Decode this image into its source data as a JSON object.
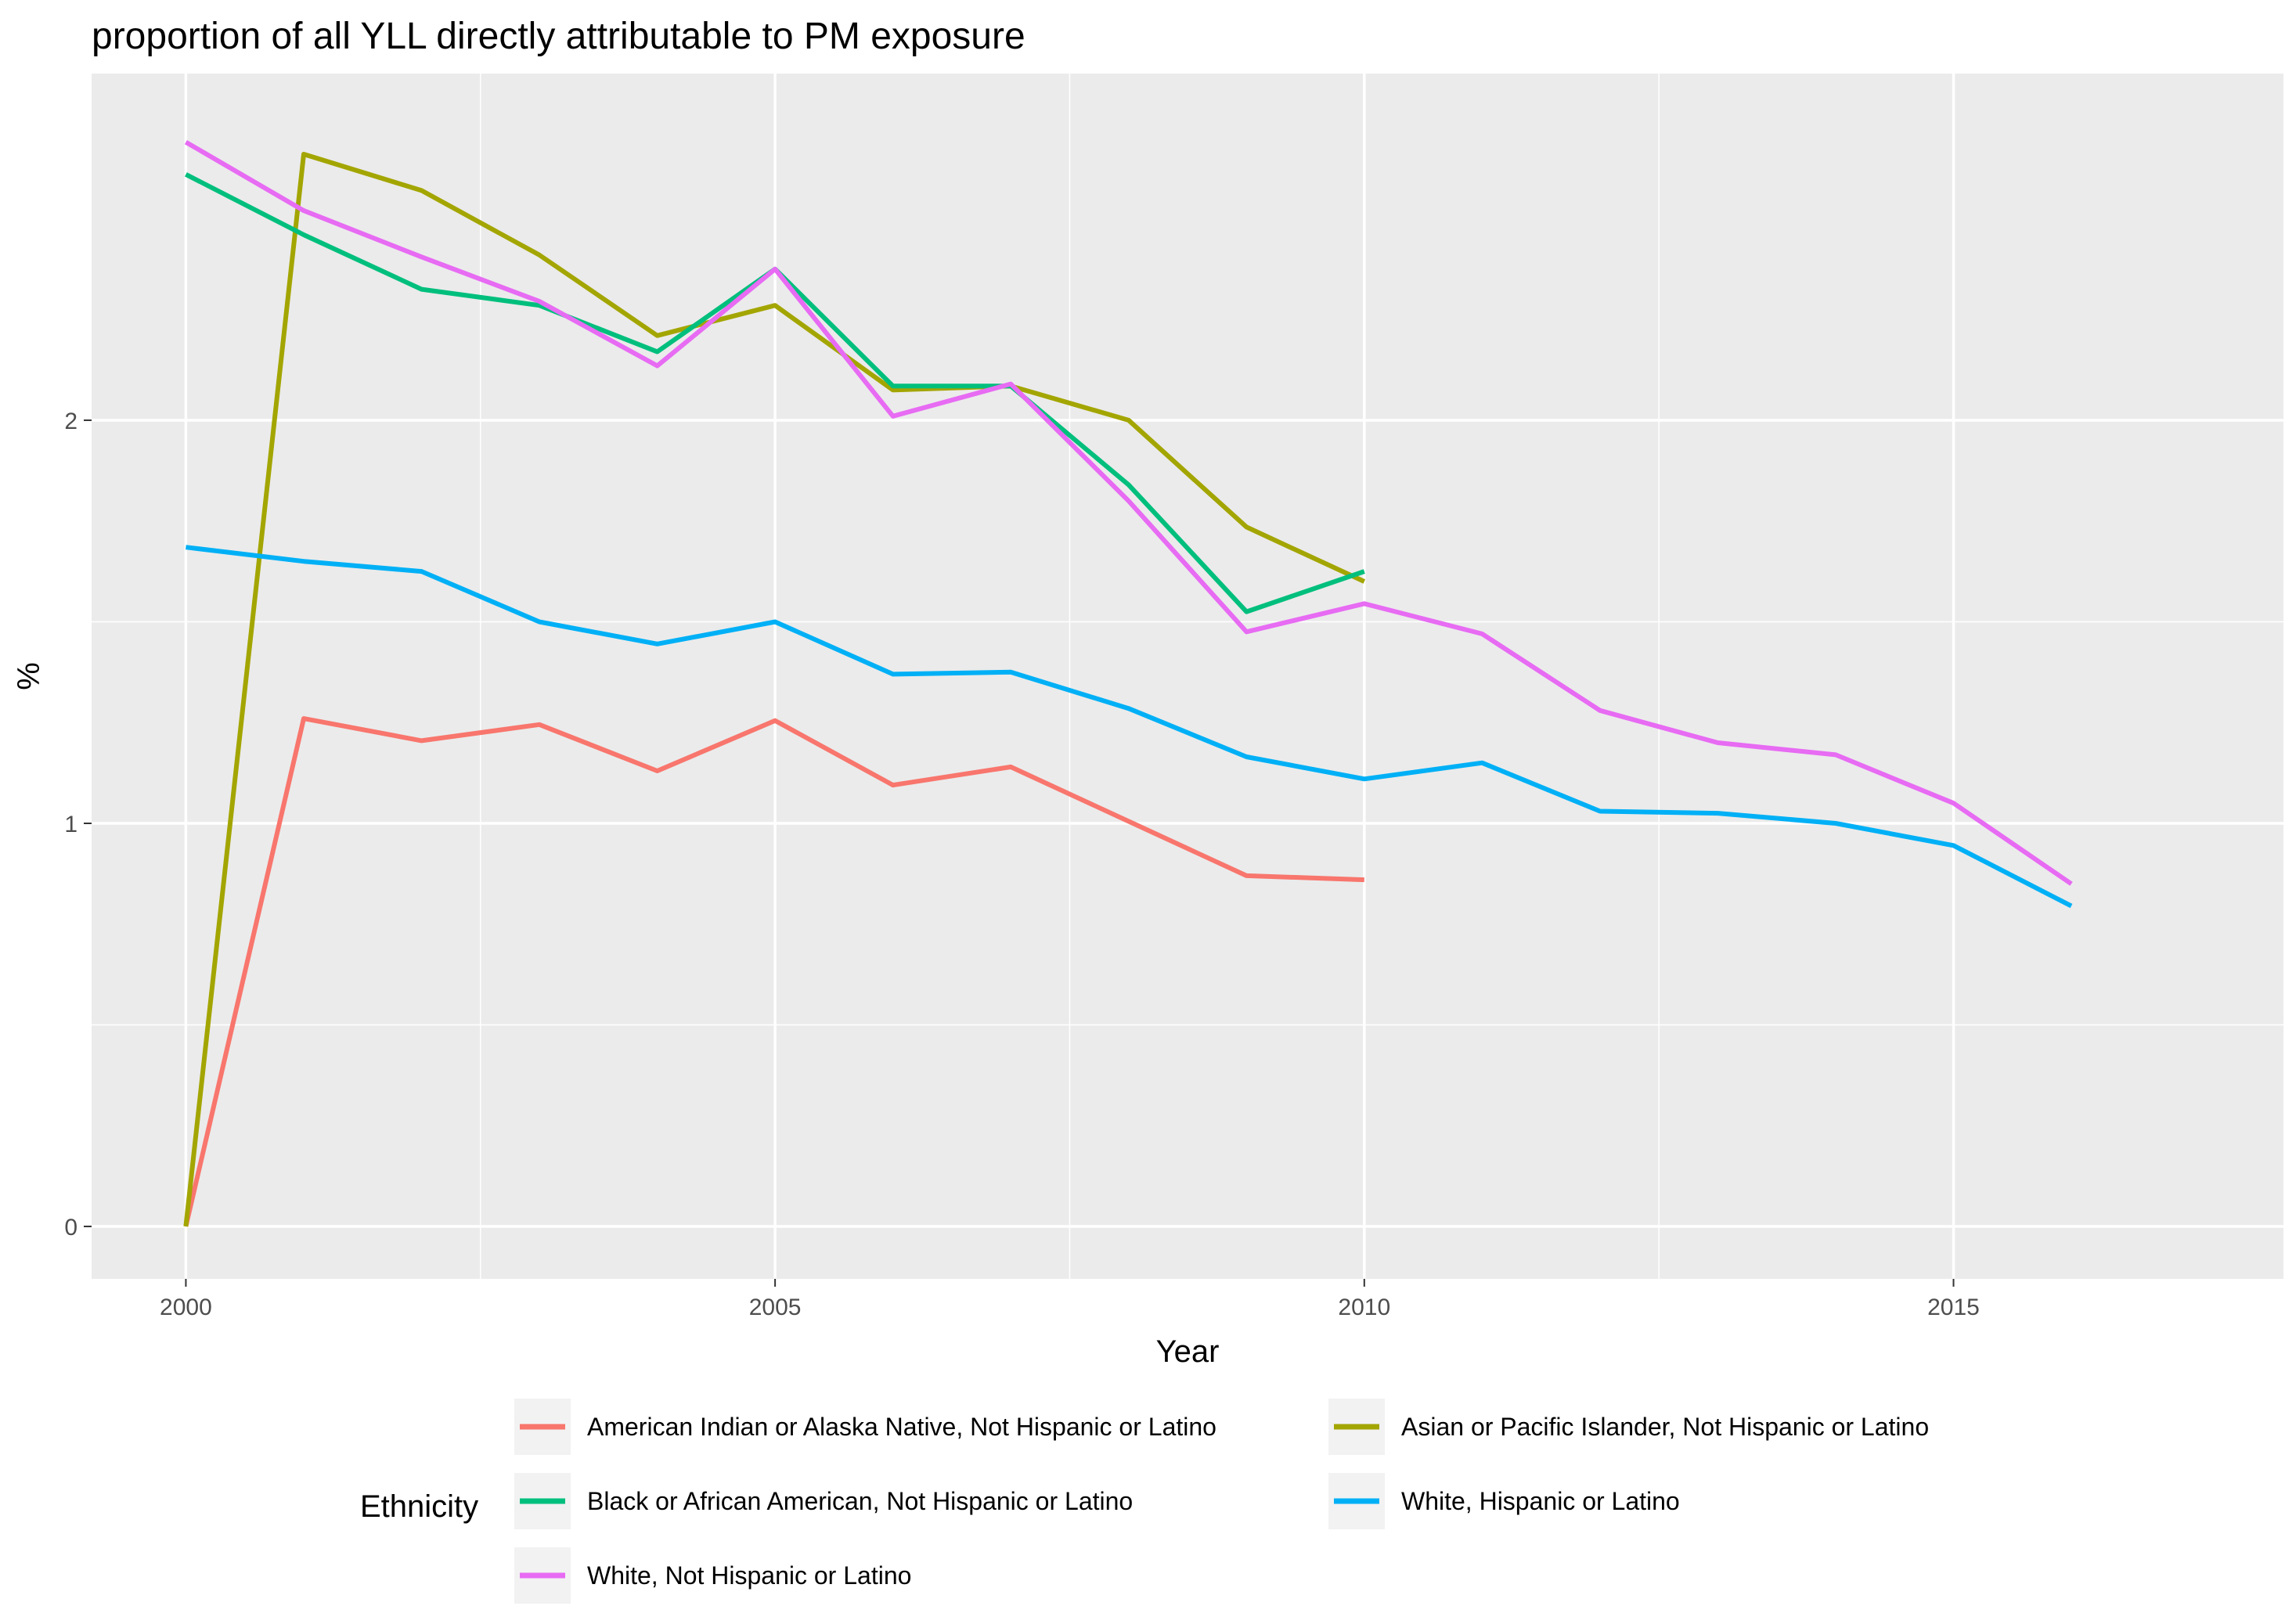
{
  "chart_data": {
    "type": "line",
    "title": "proportion of all YLL directly attributable to PM exposure",
    "xlabel": "Year",
    "ylabel": "%",
    "xlim": [
      1999.2,
      2017.8
    ],
    "ylim": [
      -0.13,
      2.86
    ],
    "x_ticks": [
      2000,
      2005,
      2010,
      2015
    ],
    "y_ticks": [
      0,
      1,
      2
    ],
    "grid": true,
    "legend": {
      "title": "Ethnicity",
      "position": "bottom"
    },
    "series": [
      {
        "name": "American Indian or Alaska Native, Not Hispanic or Latino",
        "color": "#F8766D",
        "x": [
          2000,
          2001,
          2002,
          2003,
          2004,
          2005,
          2006,
          2007,
          2008,
          2009,
          2010
        ],
        "values": [
          0.0,
          1.26,
          1.205,
          1.245,
          1.13,
          1.255,
          1.095,
          1.14,
          1.005,
          0.87,
          0.86
        ]
      },
      {
        "name": "Asian or Pacific Islander, Not Hispanic or Latino",
        "color": "#A3A500",
        "x": [
          2000,
          2001,
          2002,
          2003,
          2004,
          2005,
          2006,
          2007,
          2008,
          2009,
          2010
        ],
        "values": [
          0.0,
          2.66,
          2.57,
          2.41,
          2.21,
          2.285,
          2.075,
          2.085,
          2.0,
          1.735,
          1.6
        ]
      },
      {
        "name": "Black or African American, Not Hispanic or Latino",
        "color": "#00BF7D",
        "x": [
          2000,
          2001,
          2002,
          2003,
          2004,
          2005,
          2006,
          2007,
          2008,
          2009,
          2010
        ],
        "values": [
          2.61,
          2.46,
          2.325,
          2.285,
          2.17,
          2.375,
          2.085,
          2.085,
          1.84,
          1.525,
          1.625
        ]
      },
      {
        "name": "White, Hispanic or Latino",
        "color": "#00B0F6",
        "x": [
          2000,
          2001,
          2002,
          2003,
          2004,
          2005,
          2006,
          2007,
          2008,
          2009,
          2010,
          2011,
          2012,
          2013,
          2014,
          2015,
          2016
        ],
        "values": [
          1.685,
          1.65,
          1.625,
          1.5,
          1.445,
          1.5,
          1.37,
          1.375,
          1.285,
          1.165,
          1.11,
          1.15,
          1.03,
          1.025,
          1.0,
          0.945,
          0.795
        ]
      },
      {
        "name": "White, Not Hispanic or Latino",
        "color": "#E76BF3",
        "x": [
          2000,
          2001,
          2002,
          2003,
          2004,
          2005,
          2006,
          2007,
          2008,
          2009,
          2010,
          2011,
          2012,
          2013,
          2014,
          2015,
          2016
        ],
        "values": [
          2.69,
          2.52,
          2.405,
          2.295,
          2.135,
          2.375,
          2.01,
          2.09,
          1.8,
          1.475,
          1.545,
          1.47,
          1.28,
          1.2,
          1.17,
          1.05,
          0.85
        ]
      }
    ]
  }
}
